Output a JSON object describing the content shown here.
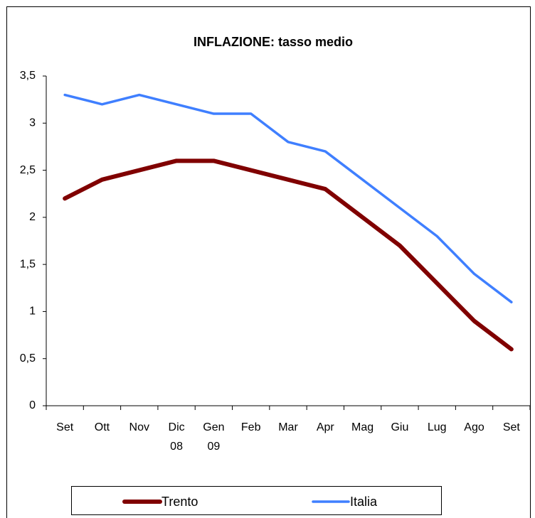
{
  "chart_data": {
    "type": "line",
    "title": "INFLAZIONE: tasso medio",
    "categories": [
      "Set",
      "Ott",
      "Nov",
      "Dic 08",
      "Gen 09",
      "Feb",
      "Mar",
      "Apr",
      "Mag",
      "Giu",
      "Lug",
      "Ago",
      "Set"
    ],
    "series": [
      {
        "name": "Trento",
        "color": "#800000",
        "values": [
          2.2,
          2.4,
          2.5,
          2.6,
          2.6,
          2.5,
          2.4,
          2.3,
          2.0,
          1.7,
          1.3,
          0.9,
          0.6
        ]
      },
      {
        "name": "Italia",
        "color": "#3f7fff",
        "values": [
          3.3,
          3.2,
          3.3,
          3.2,
          3.1,
          3.1,
          2.8,
          2.7,
          2.4,
          2.1,
          1.8,
          1.4,
          1.1
        ]
      }
    ],
    "ylim": [
      0,
      3.5
    ],
    "yticks": [
      0,
      {
        "value": 0.5,
        "label": "0,5"
      },
      1,
      {
        "value": 1.5,
        "label": "1,5"
      },
      2,
      {
        "value": 2.5,
        "label": "2,5"
      },
      3,
      {
        "value": 3.5,
        "label": "3,5"
      }
    ],
    "grid": false,
    "legend": "bottom"
  }
}
